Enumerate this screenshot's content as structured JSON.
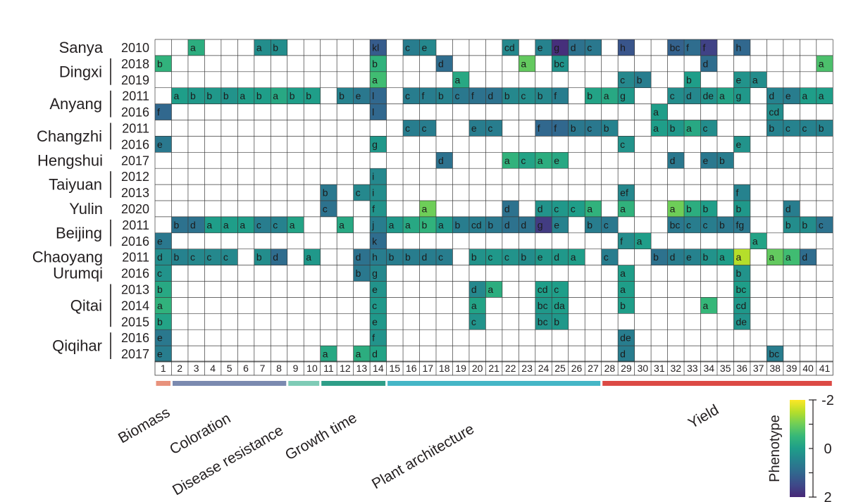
{
  "chart_data": {
    "type": "heatmap",
    "title": "",
    "columns": [
      "1",
      "2",
      "3",
      "4",
      "5",
      "6",
      "7",
      "8",
      "9",
      "10",
      "11",
      "12",
      "13",
      "14",
      "15",
      "16",
      "17",
      "18",
      "19",
      "20",
      "21",
      "22",
      "23",
      "24",
      "25",
      "26",
      "27",
      "28",
      "29",
      "30",
      "31",
      "32",
      "33",
      "34",
      "35",
      "36",
      "37",
      "38",
      "39",
      "40",
      "41"
    ],
    "rows": [
      {
        "location": "Sanya",
        "year": "2010",
        "cells": {
          "3": [
            "a",
            -0.3
          ],
          "7": [
            "a",
            0.3
          ],
          "8": [
            "b",
            0.3
          ],
          "14": [
            "kl",
            1.2
          ],
          "16": [
            "c",
            0.6
          ],
          "17": [
            "e",
            0.4
          ],
          "22": [
            "cd",
            0.4
          ],
          "24": [
            "e",
            0.5
          ],
          "25": [
            "g",
            1.9
          ],
          "26": [
            "d",
            0.8
          ],
          "27": [
            "c",
            0.7
          ],
          "29": [
            "h",
            1.3
          ],
          "32": [
            "bc",
            1.1
          ],
          "33": [
            "f",
            0.9
          ],
          "34": [
            "f",
            1.6
          ],
          "36": [
            "h",
            1.0
          ]
        }
      },
      {
        "location": "Dingxi",
        "year": "2018",
        "cells": {
          "1": [
            "b",
            -0.4
          ],
          "14": [
            "b",
            -0.4
          ],
          "18": [
            "d",
            0.9
          ],
          "23": [
            "a",
            -0.9
          ],
          "25": [
            "bc",
            0.2
          ],
          "34": [
            "d",
            0.9
          ],
          "41": [
            "a",
            -0.7
          ]
        }
      },
      {
        "location": "",
        "year": "2019",
        "cells": {
          "14": [
            "a",
            -0.6
          ],
          "19": [
            "a",
            -0.2
          ],
          "29": [
            "c",
            0.4
          ],
          "30": [
            "b",
            0.6
          ],
          "33": [
            "b",
            0.0
          ],
          "36": [
            "e",
            0.2
          ],
          "37": [
            "a",
            0.3
          ]
        }
      },
      {
        "location": "Anyang",
        "year": "2011",
        "cells": {
          "2": [
            "a",
            0.0
          ],
          "3": [
            "b",
            0.1
          ],
          "4": [
            "b",
            0.1
          ],
          "5": [
            "b",
            0.2
          ],
          "6": [
            "a",
            0.0
          ],
          "7": [
            "b",
            0.0
          ],
          "8": [
            "a",
            -0.2
          ],
          "9": [
            "b",
            0.0
          ],
          "10": [
            "b",
            0.0
          ],
          "12": [
            "b",
            0.5
          ],
          "13": [
            "e",
            0.7
          ],
          "14": [
            "l",
            1.0
          ],
          "16": [
            "c",
            0.6
          ],
          "17": [
            "f",
            0.6
          ],
          "18": [
            "b",
            0.5
          ],
          "19": [
            "c",
            0.7
          ],
          "20": [
            "f",
            0.8
          ],
          "21": [
            "d",
            0.8
          ],
          "22": [
            "b",
            0.4
          ],
          "23": [
            "c",
            0.3
          ],
          "24": [
            "b",
            0.4
          ],
          "25": [
            "f",
            0.6
          ],
          "27": [
            "b",
            -0.1
          ],
          "28": [
            "a",
            -0.2
          ],
          "29": [
            "g",
            0.1
          ],
          "32": [
            "c",
            0.3
          ],
          "33": [
            "d",
            0.4
          ],
          "34": [
            "de",
            0.2
          ],
          "35": [
            "a",
            -0.1
          ],
          "36": [
            "g",
            0.1
          ],
          "38": [
            "d",
            0.5
          ],
          "39": [
            "e",
            0.6
          ],
          "40": [
            "a",
            0.0
          ],
          "41": [
            "a",
            0.0
          ]
        }
      },
      {
        "location": "",
        "year": "2016",
        "cells": {
          "1": [
            "f",
            1.0
          ],
          "14": [
            "l",
            1.0
          ],
          "31": [
            "a",
            0.0
          ],
          "38": [
            "cd",
            0.3
          ]
        }
      },
      {
        "location": "Changzhi",
        "year": "2011",
        "cells": {
          "16": [
            "c",
            0.6
          ],
          "17": [
            "c",
            0.6
          ],
          "20": [
            "e",
            0.6
          ],
          "21": [
            "c",
            0.6
          ],
          "24": [
            "f",
            1.0
          ],
          "25": [
            "f",
            1.0
          ],
          "26": [
            "b",
            0.7
          ],
          "27": [
            "c",
            0.7
          ],
          "28": [
            "b",
            0.5
          ],
          "31": [
            "a",
            0.0
          ],
          "32": [
            "b",
            0.1
          ],
          "33": [
            "a",
            -0.2
          ],
          "34": [
            "c",
            0.3
          ],
          "38": [
            "b",
            0.5
          ],
          "39": [
            "c",
            0.5
          ],
          "40": [
            "c",
            0.5
          ],
          "41": [
            "b",
            0.5
          ]
        }
      },
      {
        "location": "",
        "year": "2016",
        "cells": {
          "1": [
            "e",
            0.7
          ],
          "14": [
            "g",
            0.1
          ],
          "29": [
            "c",
            0.2
          ],
          "36": [
            "e",
            0.2
          ]
        }
      },
      {
        "location": "Hengshui",
        "year": "2017",
        "cells": {
          "18": [
            "d",
            0.8
          ],
          "22": [
            "a",
            -0.4
          ],
          "23": [
            "c",
            -0.1
          ],
          "24": [
            "a",
            -0.3
          ],
          "25": [
            "e",
            -0.2
          ],
          "32": [
            "d",
            0.7
          ],
          "34": [
            "e",
            0.7
          ],
          "35": [
            "b",
            0.6
          ]
        }
      },
      {
        "location": "Taiyuan",
        "year": "2012",
        "cells": {
          "14": [
            "i",
            0.4
          ]
        }
      },
      {
        "location": "",
        "year": "2013",
        "cells": {
          "11": [
            "b",
            0.7
          ],
          "13": [
            "c",
            0.4
          ],
          "14": [
            "i",
            0.3
          ],
          "29": [
            "ef",
            0.4
          ],
          "36": [
            "f",
            0.5
          ]
        }
      },
      {
        "location": "Yulin",
        "year": "2020",
        "cells": {
          "11": [
            "c",
            0.8
          ],
          "14": [
            "f",
            0.2
          ],
          "17": [
            "a",
            -1.0
          ],
          "22": [
            "d",
            0.8
          ],
          "24": [
            "d",
            0.2
          ],
          "25": [
            "c",
            0.1
          ],
          "26": [
            "c",
            0.0
          ],
          "27": [
            "a",
            -0.4
          ],
          "29": [
            "a",
            -0.4
          ],
          "32": [
            "a",
            -1.0
          ],
          "33": [
            "b",
            -0.3
          ],
          "34": [
            "b",
            0.0
          ],
          "36": [
            "b",
            0.1
          ],
          "39": [
            "d",
            0.6
          ]
        }
      },
      {
        "location": "Beijing",
        "year": "2011",
        "cells": {
          "2": [
            "b",
            0.8
          ],
          "3": [
            "d",
            0.8
          ],
          "4": [
            "a",
            0.0
          ],
          "5": [
            "a",
            0.0
          ],
          "6": [
            "a",
            0.0
          ],
          "7": [
            "c",
            0.6
          ],
          "8": [
            "c",
            0.5
          ],
          "9": [
            "a",
            -0.1
          ],
          "12": [
            "a",
            -0.2
          ],
          "14": [
            "j",
            0.6
          ],
          "15": [
            "a",
            0.1
          ],
          "16": [
            "a",
            -0.2
          ],
          "17": [
            "b",
            -0.4
          ],
          "18": [
            "a",
            0.1
          ],
          "19": [
            "b",
            0.6
          ],
          "20": [
            "cd",
            0.6
          ],
          "21": [
            "b",
            0.7
          ],
          "22": [
            "d",
            0.8
          ],
          "23": [
            "d",
            0.8
          ],
          "24": [
            "g",
            1.7
          ],
          "25": [
            "e",
            0.5
          ],
          "27": [
            "b",
            0.6
          ],
          "28": [
            "c",
            0.7
          ],
          "32": [
            "bc",
            0.7
          ],
          "33": [
            "c",
            0.6
          ],
          "34": [
            "c",
            0.6
          ],
          "35": [
            "b",
            0.7
          ],
          "36": [
            "fg",
            0.7
          ],
          "39": [
            "b",
            0.3
          ],
          "40": [
            "b",
            0.3
          ],
          "41": [
            "c",
            0.8
          ]
        }
      },
      {
        "location": "",
        "year": "2016",
        "cells": {
          "1": [
            "e",
            0.7
          ],
          "14": [
            "k",
            0.9
          ],
          "29": [
            "f",
            0.3
          ],
          "30": [
            "a",
            0.0
          ],
          "37": [
            "a",
            -0.1
          ]
        }
      },
      {
        "location": "Chaoyang",
        "year": "2011",
        "cells": {
          "1": [
            "d",
            0.3
          ],
          "2": [
            "b",
            0.5
          ],
          "3": [
            "c",
            0.4
          ],
          "4": [
            "c",
            0.4
          ],
          "5": [
            "c",
            0.4
          ],
          "7": [
            "b",
            0.3
          ],
          "8": [
            "d",
            0.9
          ],
          "10": [
            "a",
            0.1
          ],
          "13": [
            "d",
            0.8
          ],
          "14": [
            "h",
            0.6
          ],
          "15": [
            "b",
            0.6
          ],
          "16": [
            "b",
            0.6
          ],
          "17": [
            "d",
            0.6
          ],
          "18": [
            "c",
            0.6
          ],
          "20": [
            "b",
            0.2
          ],
          "21": [
            "c",
            0.1
          ],
          "22": [
            "c",
            0.2
          ],
          "23": [
            "b",
            0.3
          ],
          "24": [
            "e",
            0.1
          ],
          "25": [
            "d",
            0.1
          ],
          "26": [
            "a",
            0.0
          ],
          "28": [
            "c",
            0.6
          ],
          "31": [
            "b",
            0.8
          ],
          "32": [
            "d",
            0.6
          ],
          "33": [
            "e",
            0.5
          ],
          "34": [
            "b",
            0.2
          ],
          "35": [
            "a",
            0.0
          ],
          "36": [
            "a",
            -1.5
          ],
          "38": [
            "a",
            -0.9
          ],
          "39": [
            "a",
            -0.6
          ],
          "40": [
            "d",
            0.9
          ]
        }
      },
      {
        "location": "Urumqi",
        "year": "2016",
        "cells": {
          "1": [
            "c",
            0.2
          ],
          "13": [
            "b",
            0.7
          ],
          "14": [
            "g",
            0.4
          ],
          "29": [
            "a",
            0.0
          ],
          "36": [
            "b",
            0.2
          ]
        }
      },
      {
        "location": "Qitai",
        "year": "2013",
        "cells": {
          "1": [
            "b",
            -0.2
          ],
          "14": [
            "e",
            0.2
          ],
          "20": [
            "d",
            0.4
          ],
          "21": [
            "a",
            -0.3
          ],
          "24": [
            "cd",
            0.0
          ],
          "25": [
            "c",
            0.0
          ],
          "29": [
            "a",
            0.0
          ],
          "36": [
            "bc",
            0.0
          ]
        }
      },
      {
        "location": "",
        "year": "2014",
        "cells": {
          "1": [
            "a",
            -0.4
          ],
          "14": [
            "c",
            0.1
          ],
          "20": [
            "a",
            -0.1
          ],
          "24": [
            "bc",
            0.1
          ],
          "25": [
            "da",
            0.0
          ],
          "29": [
            "b",
            0.0
          ],
          "34": [
            "a",
            -0.5
          ],
          "36": [
            "cd",
            0.1
          ]
        }
      },
      {
        "location": "",
        "year": "2015",
        "cells": {
          "1": [
            "b",
            -0.1
          ],
          "14": [
            "e",
            0.1
          ],
          "20": [
            "c",
            0.2
          ],
          "24": [
            "bc",
            0.2
          ],
          "25": [
            "b",
            0.1
          ],
          "36": [
            "de",
            0.2
          ]
        }
      },
      {
        "location": "Qiqihar",
        "year": "2016",
        "cells": {
          "1": [
            "e",
            0.7
          ],
          "14": [
            "f",
            0.2
          ],
          "29": [
            "de",
            0.6
          ]
        }
      },
      {
        "location": "",
        "year": "2017",
        "cells": {
          "1": [
            "e",
            0.6
          ],
          "11": [
            "a",
            -0.2
          ],
          "13": [
            "a",
            -0.3
          ],
          "14": [
            "d",
            -0.1
          ],
          "29": [
            "d",
            0.6
          ],
          "38": [
            "bc",
            0.6
          ]
        }
      }
    ],
    "categories": [
      {
        "name": "Biomass",
        "start": 1,
        "end": 1,
        "color": "#e8927c"
      },
      {
        "name": "Coloration",
        "start": 2,
        "end": 8,
        "color": "#7b8ab0"
      },
      {
        "name": "Disease resistance",
        "start": 9,
        "end": 10,
        "color": "#7ecbb6"
      },
      {
        "name": "Growth time",
        "start": 11,
        "end": 14,
        "color": "#2e9e88"
      },
      {
        "name": "Plant architecture",
        "start": 15,
        "end": 27,
        "color": "#45b6c6"
      },
      {
        "name": "Yield",
        "start": 28,
        "end": 41,
        "color": "#dc4a45"
      }
    ],
    "colorbar": {
      "label": "Phenotype",
      "min": -2,
      "max": 2,
      "ticks": [
        "-2",
        "0",
        "2"
      ],
      "colormap": "viridis-reversed"
    }
  }
}
